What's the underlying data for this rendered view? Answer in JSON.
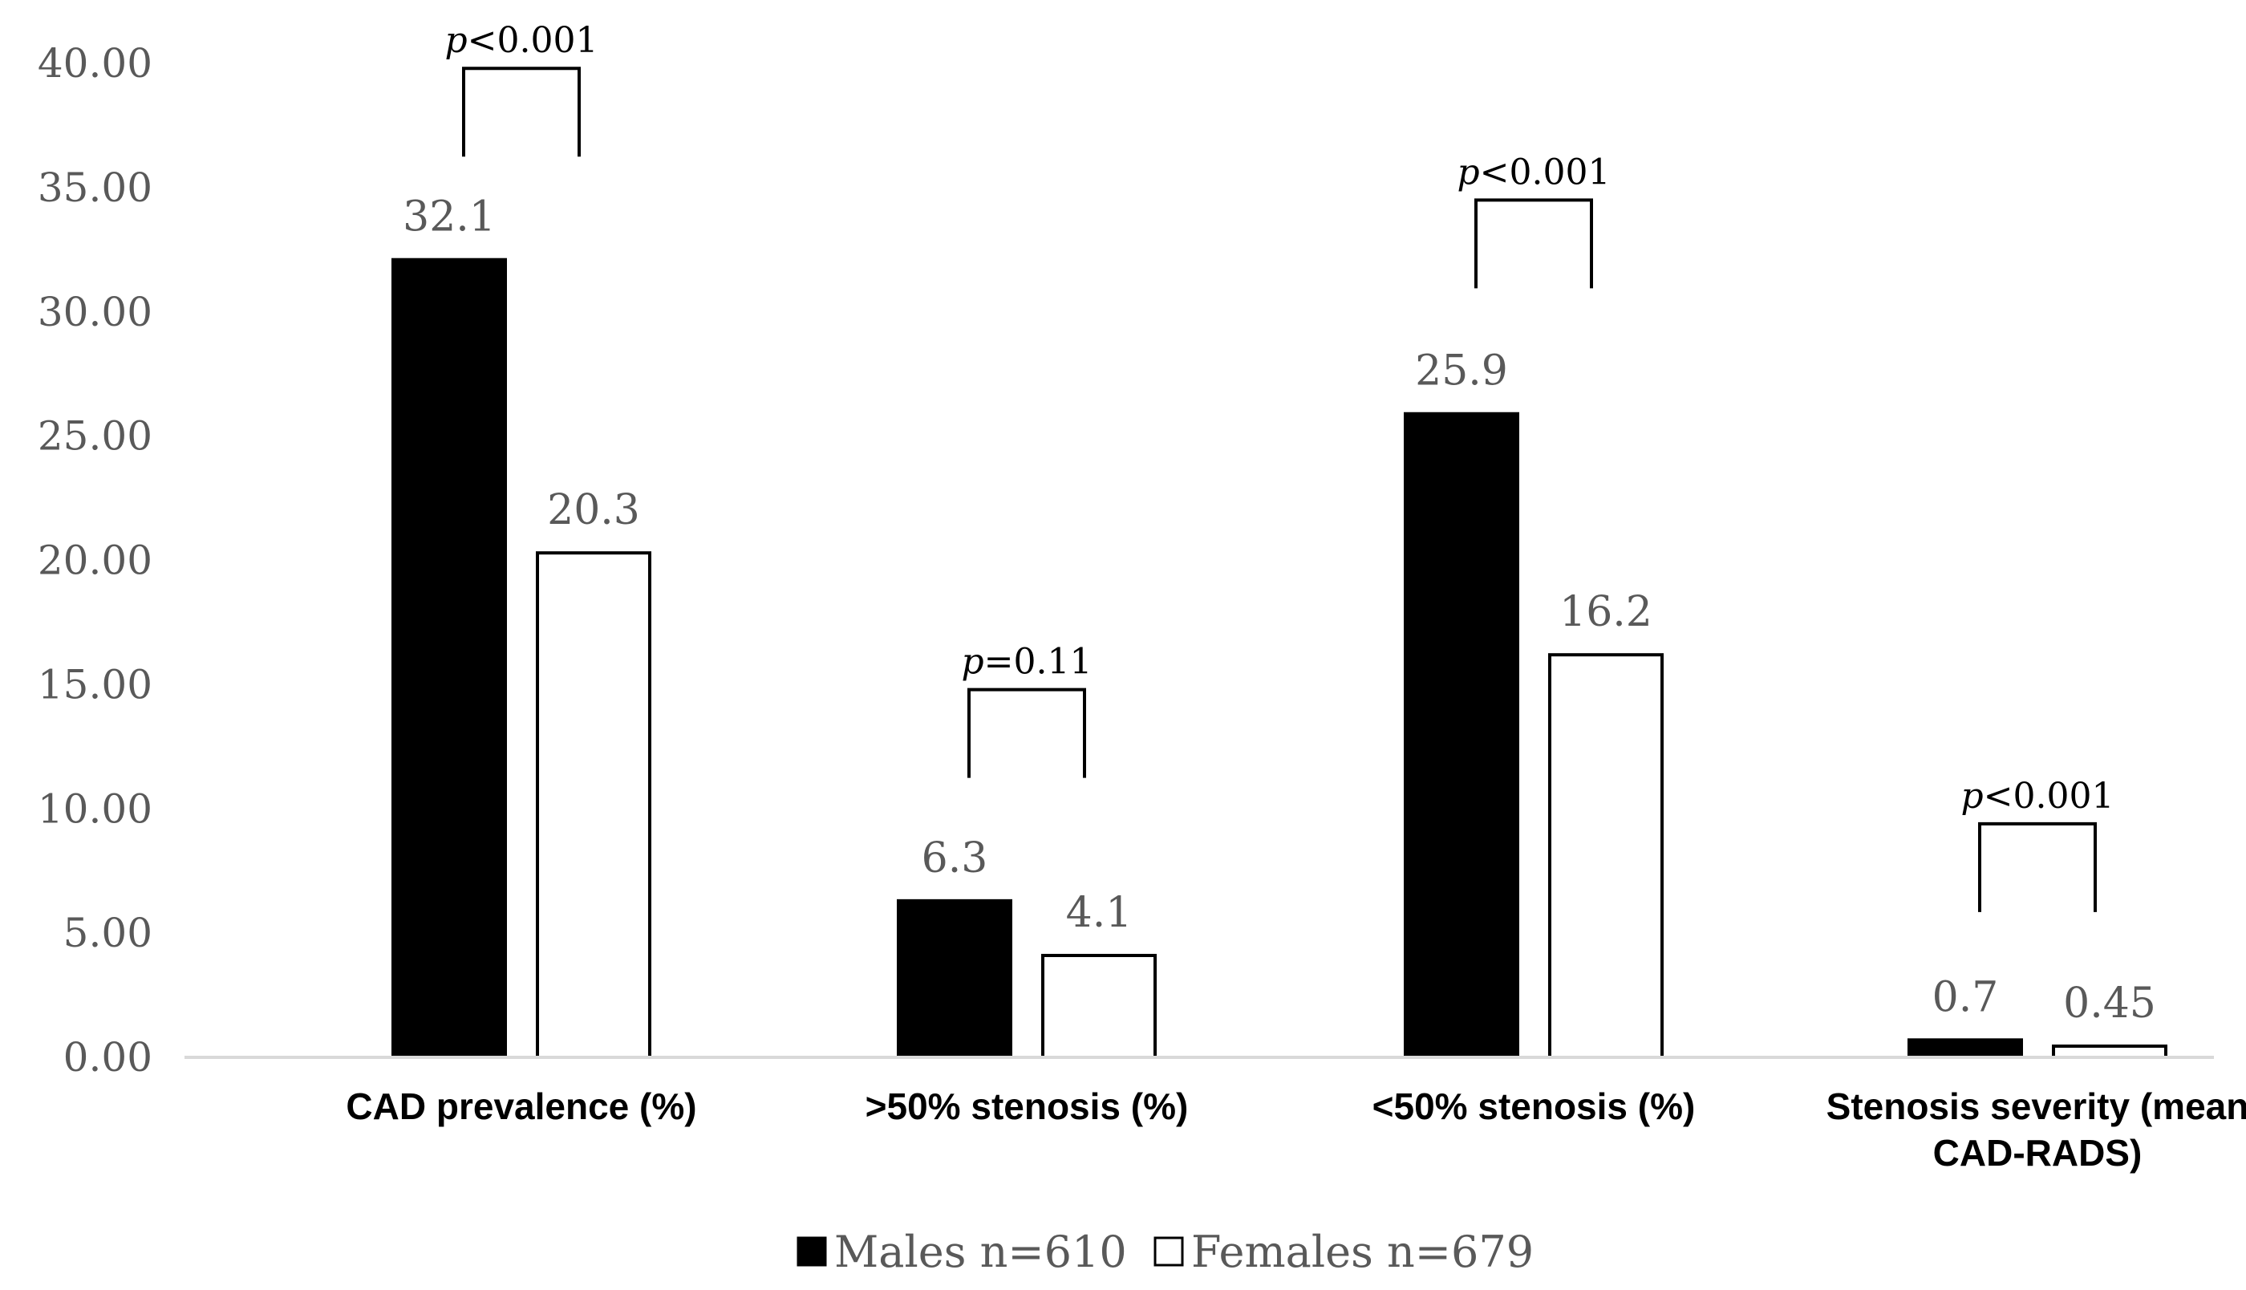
{
  "chart_data": {
    "type": "bar",
    "title": "",
    "xlabel": "",
    "ylabel": "",
    "ylim": [
      0,
      40
    ],
    "yticks": [
      "0.00",
      "5.00",
      "10.00",
      "15.00",
      "20.00",
      "25.00",
      "30.00",
      "35.00",
      "40.00"
    ],
    "grid": false,
    "legend_position": "bottom",
    "categories": [
      [
        "CAD prevalence (%)"
      ],
      [
        ">50% stenosis (%)"
      ],
      [
        "<50% stenosis (%)"
      ],
      [
        "Stenosis severity (mean",
        "CAD-RADS)"
      ]
    ],
    "series": [
      {
        "name": "Males n=610",
        "color": "#000000",
        "values": [
          32.1,
          6.3,
          25.9,
          0.7
        ],
        "labels": [
          "32.1",
          "6.3",
          "25.9",
          "0.7"
        ]
      },
      {
        "name": "Females n=679",
        "color": "#ffffff",
        "values": [
          20.3,
          4.1,
          16.2,
          0.45
        ],
        "labels": [
          "20.3",
          "4.1",
          "16.2",
          "0.45"
        ]
      }
    ],
    "annotations": [
      {
        "category": 0,
        "prefix": "p",
        "text": "<0.001",
        "y": 39.8
      },
      {
        "category": 1,
        "prefix": "p",
        "text": "=0.11",
        "y": 14.8
      },
      {
        "category": 2,
        "prefix": "p",
        "text": "<0.001",
        "y": 34.5
      },
      {
        "category": 3,
        "prefix": "p",
        "text": "<0.001",
        "y": 9.4
      }
    ]
  }
}
